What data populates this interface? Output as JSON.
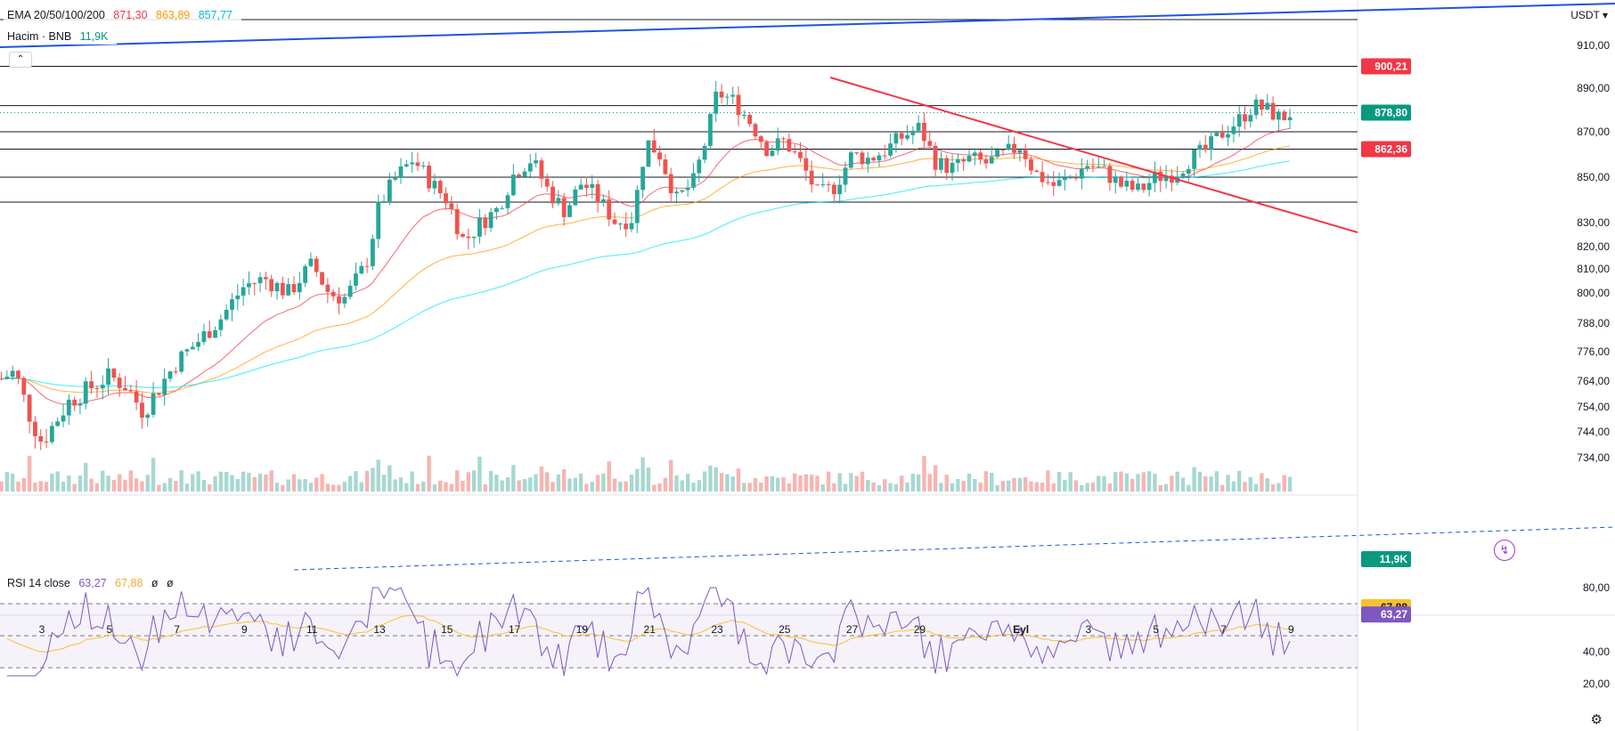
{
  "legend": {
    "ema": {
      "label": "EMA 20/50/100/200",
      "v1": "871,30",
      "v2": "863,89",
      "v3": "857,77"
    },
    "volume": {
      "label": "Hacim · BNB",
      "value": "11,9K"
    },
    "rsi": {
      "label": "RSI 14 close",
      "v1": "63,27",
      "v2": "67,88",
      "v3": "ø",
      "v4": "ø"
    }
  },
  "currency": "USDT",
  "colors": {
    "up": "#26a69a",
    "down": "#ef5350",
    "ema20": "#f23645",
    "ema50": "#ff9800",
    "ema100": "#00e5ff",
    "trend": "#1e53e5",
    "downtrend": "#f23645",
    "rsi": "#7e57c2",
    "rsi_ma": "#fbc02d"
  },
  "chart_data": {
    "type": "candlestick",
    "ylim": [
      724,
      918
    ],
    "y_ticks": [
      "910,00",
      "890,00",
      "870,00",
      "850,00",
      "830,00",
      "820,00",
      "810,00",
      "800,00",
      "788,00",
      "776,00",
      "764,00",
      "754,00",
      "744,00",
      "734,00"
    ],
    "y_tick_values": [
      910,
      890,
      870,
      850,
      830,
      820,
      810,
      800,
      788,
      776,
      764,
      754,
      744,
      734
    ],
    "x_ticks": [
      "3",
      "5",
      "7",
      "9",
      "11",
      "13",
      "15",
      "17",
      "19",
      "21",
      "23",
      "25",
      "27",
      "29",
      "Eyl",
      "3",
      "5",
      "7",
      "9"
    ],
    "x_tick_days": [
      3,
      5,
      7,
      9,
      11,
      13,
      15,
      17,
      19,
      21,
      23,
      25,
      27,
      29,
      32,
      34,
      36,
      38,
      40
    ],
    "x_range_days": [
      1.8,
      41.8
    ],
    "price_labels": [
      {
        "text": "900,21",
        "value": 900.21,
        "color": "#f23645"
      },
      {
        "text": "878,80",
        "value": 878.8,
        "color": "#089981"
      },
      {
        "text": "862,36",
        "value": 862.36,
        "color": "#f23645"
      },
      {
        "text": "11,9K",
        "value": null,
        "color": "#089981"
      }
    ],
    "horizontal_levels": [
      900.21,
      882,
      870,
      862.36,
      850,
      839
    ],
    "current_price": 878.8,
    "rsi": {
      "ylim": [
        20,
        80
      ],
      "ticks": [
        "80,00",
        "67,88",
        "63,27",
        "40,00",
        "20,00"
      ],
      "tick_values": [
        80,
        67.88,
        63.27,
        40,
        20
      ],
      "bands": [
        70,
        50,
        30
      ],
      "last": 63.27,
      "ma_last": 67.88
    }
  }
}
